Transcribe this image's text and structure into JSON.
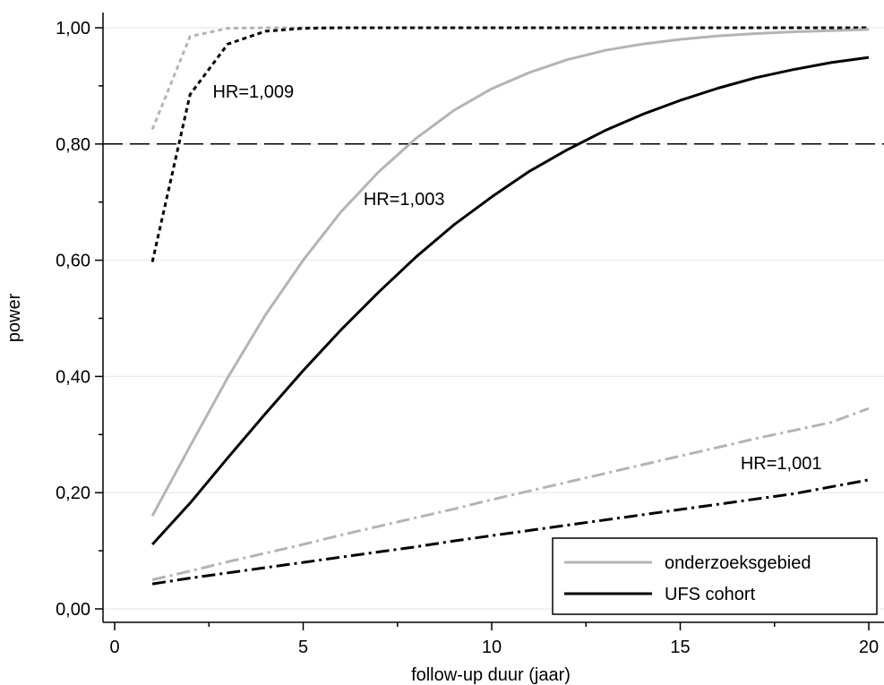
{
  "chart_data": {
    "type": "line",
    "xlabel": "follow-up duur (jaar)",
    "ylabel": "power",
    "xlim": [
      0,
      20
    ],
    "ylim": [
      0,
      1
    ],
    "xticks": [
      0,
      5,
      10,
      15,
      20
    ],
    "xtick_labels": [
      "0",
      "5",
      "10",
      "15",
      "20"
    ],
    "yticks": [
      0,
      0.2,
      0.4,
      0.6,
      0.8,
      1.0
    ],
    "ytick_labels": [
      "0,00",
      "0,20",
      "0,40",
      "0,60",
      "0,80",
      "1,00"
    ],
    "grid": "horizontal",
    "reference_line": {
      "y": 0.8,
      "style": "long-dash",
      "color": "#000000"
    },
    "legend": {
      "placement": "bottom-right",
      "entries": [
        {
          "label": "onderzoeksgebied",
          "color": "#b4b4b4"
        },
        {
          "label": "UFS cohort",
          "color": "#000000"
        }
      ]
    },
    "annotations": [
      {
        "text": "HR=1,009",
        "x": 2.6,
        "y": 0.88
      },
      {
        "text": "HR=1,003",
        "x": 6.6,
        "y": 0.695
      },
      {
        "text": "HR=1,001",
        "x": 16.6,
        "y": 0.24
      }
    ],
    "colors": {
      "onderzoeksgebied": "#b4b4b4",
      "ufs_cohort": "#000000",
      "grid": "#e8eff3"
    },
    "series": [
      {
        "group": "onderzoeksgebied",
        "hr": "HR=1,009",
        "dash": "short-dash",
        "x": [
          1,
          2,
          3,
          4,
          5,
          6,
          7,
          8,
          9,
          10,
          11,
          12,
          13,
          14,
          15,
          16,
          17,
          18,
          19,
          20
        ],
        "values": [
          0.825,
          0.985,
          0.999,
          1.0,
          1.0,
          1.0,
          1.0,
          1.0,
          1.0,
          1.0,
          1.0,
          1.0,
          1.0,
          1.0,
          1.0,
          1.0,
          1.0,
          1.0,
          1.0,
          1.0
        ]
      },
      {
        "group": "UFS cohort",
        "hr": "HR=1,009",
        "dash": "short-dash",
        "x": [
          1,
          2,
          3,
          4,
          5,
          6,
          7,
          8,
          9,
          10,
          11,
          12,
          13,
          14,
          15,
          16,
          17,
          18,
          19,
          20
        ],
        "values": [
          0.597,
          0.885,
          0.972,
          0.994,
          0.999,
          1.0,
          1.0,
          1.0,
          1.0,
          1.0,
          1.0,
          1.0,
          1.0,
          1.0,
          1.0,
          1.0,
          1.0,
          1.0,
          1.0,
          1.0
        ]
      },
      {
        "group": "onderzoeksgebied",
        "hr": "HR=1,003",
        "dash": "solid",
        "x": [
          1,
          2,
          3,
          4,
          5,
          6,
          7,
          8,
          9,
          10,
          11,
          12,
          13,
          14,
          15,
          16,
          17,
          18,
          19,
          20
        ],
        "values": [
          0.16,
          0.28,
          0.398,
          0.506,
          0.6,
          0.683,
          0.752,
          0.81,
          0.858,
          0.895,
          0.923,
          0.945,
          0.961,
          0.972,
          0.98,
          0.986,
          0.99,
          0.993,
          0.995,
          0.997
        ]
      },
      {
        "group": "UFS cohort",
        "hr": "HR=1,003",
        "dash": "solid",
        "x": [
          1,
          2,
          3,
          4,
          5,
          6,
          7,
          8,
          9,
          10,
          11,
          12,
          13,
          14,
          15,
          16,
          17,
          18,
          19,
          20
        ],
        "values": [
          0.111,
          0.182,
          0.26,
          0.336,
          0.41,
          0.48,
          0.545,
          0.606,
          0.661,
          0.709,
          0.753,
          0.79,
          0.823,
          0.851,
          0.875,
          0.896,
          0.914,
          0.928,
          0.94,
          0.949
        ]
      },
      {
        "group": "onderzoeksgebied",
        "hr": "HR=1,001",
        "dash": "dash-dot",
        "x": [
          1,
          2,
          3,
          4,
          5,
          6,
          7,
          8,
          9,
          10,
          11,
          12,
          13,
          14,
          15,
          16,
          17,
          18,
          19,
          20
        ],
        "values": [
          0.05,
          0.065,
          0.081,
          0.096,
          0.111,
          0.127,
          0.142,
          0.157,
          0.172,
          0.188,
          0.203,
          0.218,
          0.233,
          0.248,
          0.263,
          0.278,
          0.293,
          0.307,
          0.321,
          0.345
        ]
      },
      {
        "group": "UFS cohort",
        "hr": "HR=1,001",
        "dash": "dash-dot",
        "x": [
          1,
          2,
          3,
          4,
          5,
          6,
          7,
          8,
          9,
          10,
          11,
          12,
          13,
          14,
          15,
          16,
          17,
          18,
          19,
          20
        ],
        "values": [
          0.043,
          0.053,
          0.062,
          0.071,
          0.08,
          0.089,
          0.098,
          0.107,
          0.117,
          0.126,
          0.135,
          0.144,
          0.153,
          0.162,
          0.171,
          0.18,
          0.189,
          0.198,
          0.21,
          0.222
        ]
      }
    ]
  }
}
